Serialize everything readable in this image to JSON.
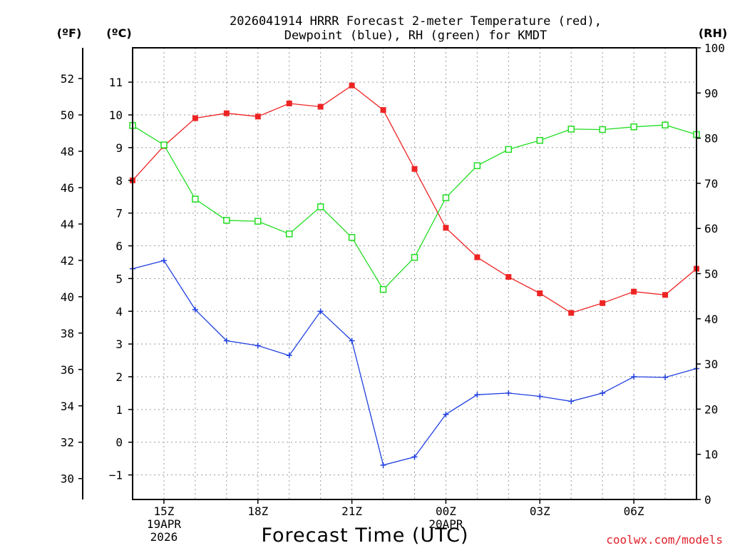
{
  "chart_data": {
    "type": "line",
    "title_line1": "2026041914 HRRR Forecast 2-meter Temperature (red),",
    "title_line2": "Dewpoint (blue), RH (green) for KMDT",
    "xlabel": "Forecast Time (UTC)",
    "credit": "coolwx.com/models",
    "unit_f": "(ºF)",
    "unit_c": "(ºC)",
    "unit_rh": "(RH)",
    "x_hours": [
      14,
      15,
      16,
      17,
      18,
      19,
      20,
      21,
      22,
      23,
      24,
      25,
      26,
      27,
      28,
      29,
      30,
      31,
      32
    ],
    "x_range": [
      14,
      32
    ],
    "x_ticks": [
      {
        "hour": 15,
        "lines": [
          "15Z",
          "19APR",
          "2026"
        ]
      },
      {
        "hour": 18,
        "lines": [
          "18Z"
        ]
      },
      {
        "hour": 21,
        "lines": [
          "21Z"
        ]
      },
      {
        "hour": 24,
        "lines": [
          "00Z",
          "20APR"
        ]
      },
      {
        "hour": 27,
        "lines": [
          "03Z"
        ]
      },
      {
        "hour": 30,
        "lines": [
          "06Z"
        ]
      }
    ],
    "celsius_axis": {
      "range": [
        -1.75,
        12.05
      ],
      "ticks": [
        -1,
        0,
        1,
        2,
        3,
        4,
        5,
        6,
        7,
        8,
        9,
        10,
        11
      ]
    },
    "fahrenheit_axis": {
      "ticks": [
        30,
        32,
        34,
        36,
        38,
        40,
        42,
        44,
        46,
        48,
        50,
        52
      ]
    },
    "rh_axis": {
      "range": [
        0,
        100
      ],
      "ticks": [
        0,
        10,
        20,
        30,
        40,
        50,
        60,
        70,
        80,
        90,
        100
      ]
    },
    "series": [
      {
        "name": "2-meter Temperature",
        "color": "#ee2424",
        "marker": "filled-square",
        "axis": "celsius",
        "values": [
          8.0,
          9.05,
          9.9,
          10.05,
          9.95,
          10.35,
          10.25,
          10.9,
          10.15,
          8.35,
          6.55,
          5.65,
          5.05,
          4.55,
          3.95,
          4.25,
          4.6,
          4.5,
          5.3
        ]
      },
      {
        "name": "Dewpoint",
        "color": "#2040e0",
        "marker": "plus",
        "axis": "celsius",
        "values": [
          5.3,
          5.55,
          4.05,
          3.1,
          2.95,
          2.65,
          4.0,
          3.1,
          -0.7,
          -0.45,
          0.85,
          1.45,
          1.5,
          1.4,
          1.25,
          1.5,
          2.0,
          1.98,
          2.25
        ]
      },
      {
        "name": "RH",
        "color": "#22dd22",
        "marker": "open-square",
        "axis": "rh",
        "values": [
          82.8,
          78.5,
          66.5,
          61.8,
          61.6,
          58.8,
          64.8,
          58.0,
          46.5,
          53.6,
          66.8,
          73.9,
          77.5,
          79.5,
          82.0,
          81.9,
          82.5,
          82.9,
          80.8
        ]
      }
    ]
  }
}
